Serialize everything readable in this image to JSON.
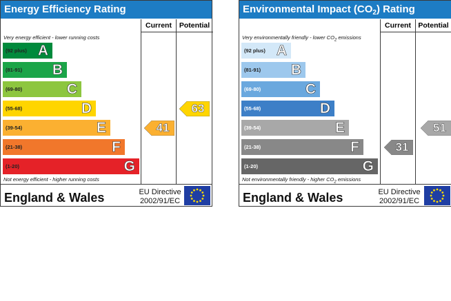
{
  "chart_data": [
    {
      "type": "table",
      "title": "Energy Efficiency Rating",
      "columns": [
        "Current",
        "Potential"
      ],
      "top_note": "Very energy efficient - lower running costs",
      "bottom_note": "Not energy efficient - higher running costs",
      "bands": [
        {
          "range": "(92 plus)",
          "letter": "A",
          "color": "#008a3c"
        },
        {
          "range": "(81-91)",
          "letter": "B",
          "color": "#1ba548"
        },
        {
          "range": "(69-80)",
          "letter": "C",
          "color": "#8dc63f"
        },
        {
          "range": "(55-68)",
          "letter": "D",
          "color": "#ffd500"
        },
        {
          "range": "(39-54)",
          "letter": "E",
          "color": "#fbb031"
        },
        {
          "range": "(21-38)",
          "letter": "F",
          "color": "#f1772b"
        },
        {
          "range": "(1-20)",
          "letter": "G",
          "color": "#e52228"
        }
      ],
      "current": {
        "value": 41,
        "band": "E",
        "color": "#fbb031"
      },
      "potential": {
        "value": 63,
        "band": "D",
        "color": "#ffd500"
      },
      "footer": {
        "region": "England & Wales",
        "directive_line1": "EU Directive",
        "directive_line2": "2002/91/EC"
      }
    },
    {
      "type": "table",
      "title_pre": "Environmental Impact (CO",
      "title_sub": "2",
      "title_post": ") Rating",
      "columns": [
        "Current",
        "Potential"
      ],
      "top_note_pre": "Very environmentally friendly - lower CO",
      "top_note_sub": "2",
      "top_note_post": " emissions",
      "bottom_note_pre": "Not environmentally friendly - higher CO",
      "bottom_note_sub": "2",
      "bottom_note_post": " emissions",
      "bands": [
        {
          "range": "(92 plus)",
          "letter": "A",
          "color": "#d3e8f8"
        },
        {
          "range": "(81-91)",
          "letter": "B",
          "color": "#9dc8ed"
        },
        {
          "range": "(69-80)",
          "letter": "C",
          "color": "#6aa8de"
        },
        {
          "range": "(55-68)",
          "letter": "D",
          "color": "#3d7fc7"
        },
        {
          "range": "(39-54)",
          "letter": "E",
          "color": "#a8a8a8"
        },
        {
          "range": "(21-38)",
          "letter": "F",
          "color": "#888888"
        },
        {
          "range": "(1-20)",
          "letter": "G",
          "color": "#666666"
        }
      ],
      "current": {
        "value": 31,
        "band": "F",
        "color": "#888888"
      },
      "potential": {
        "value": 51,
        "band": "E",
        "color": "#a8a8a8"
      },
      "footer": {
        "region": "England & Wales",
        "directive_line1": "EU Directive",
        "directive_line2": "2002/91/EC"
      }
    }
  ]
}
